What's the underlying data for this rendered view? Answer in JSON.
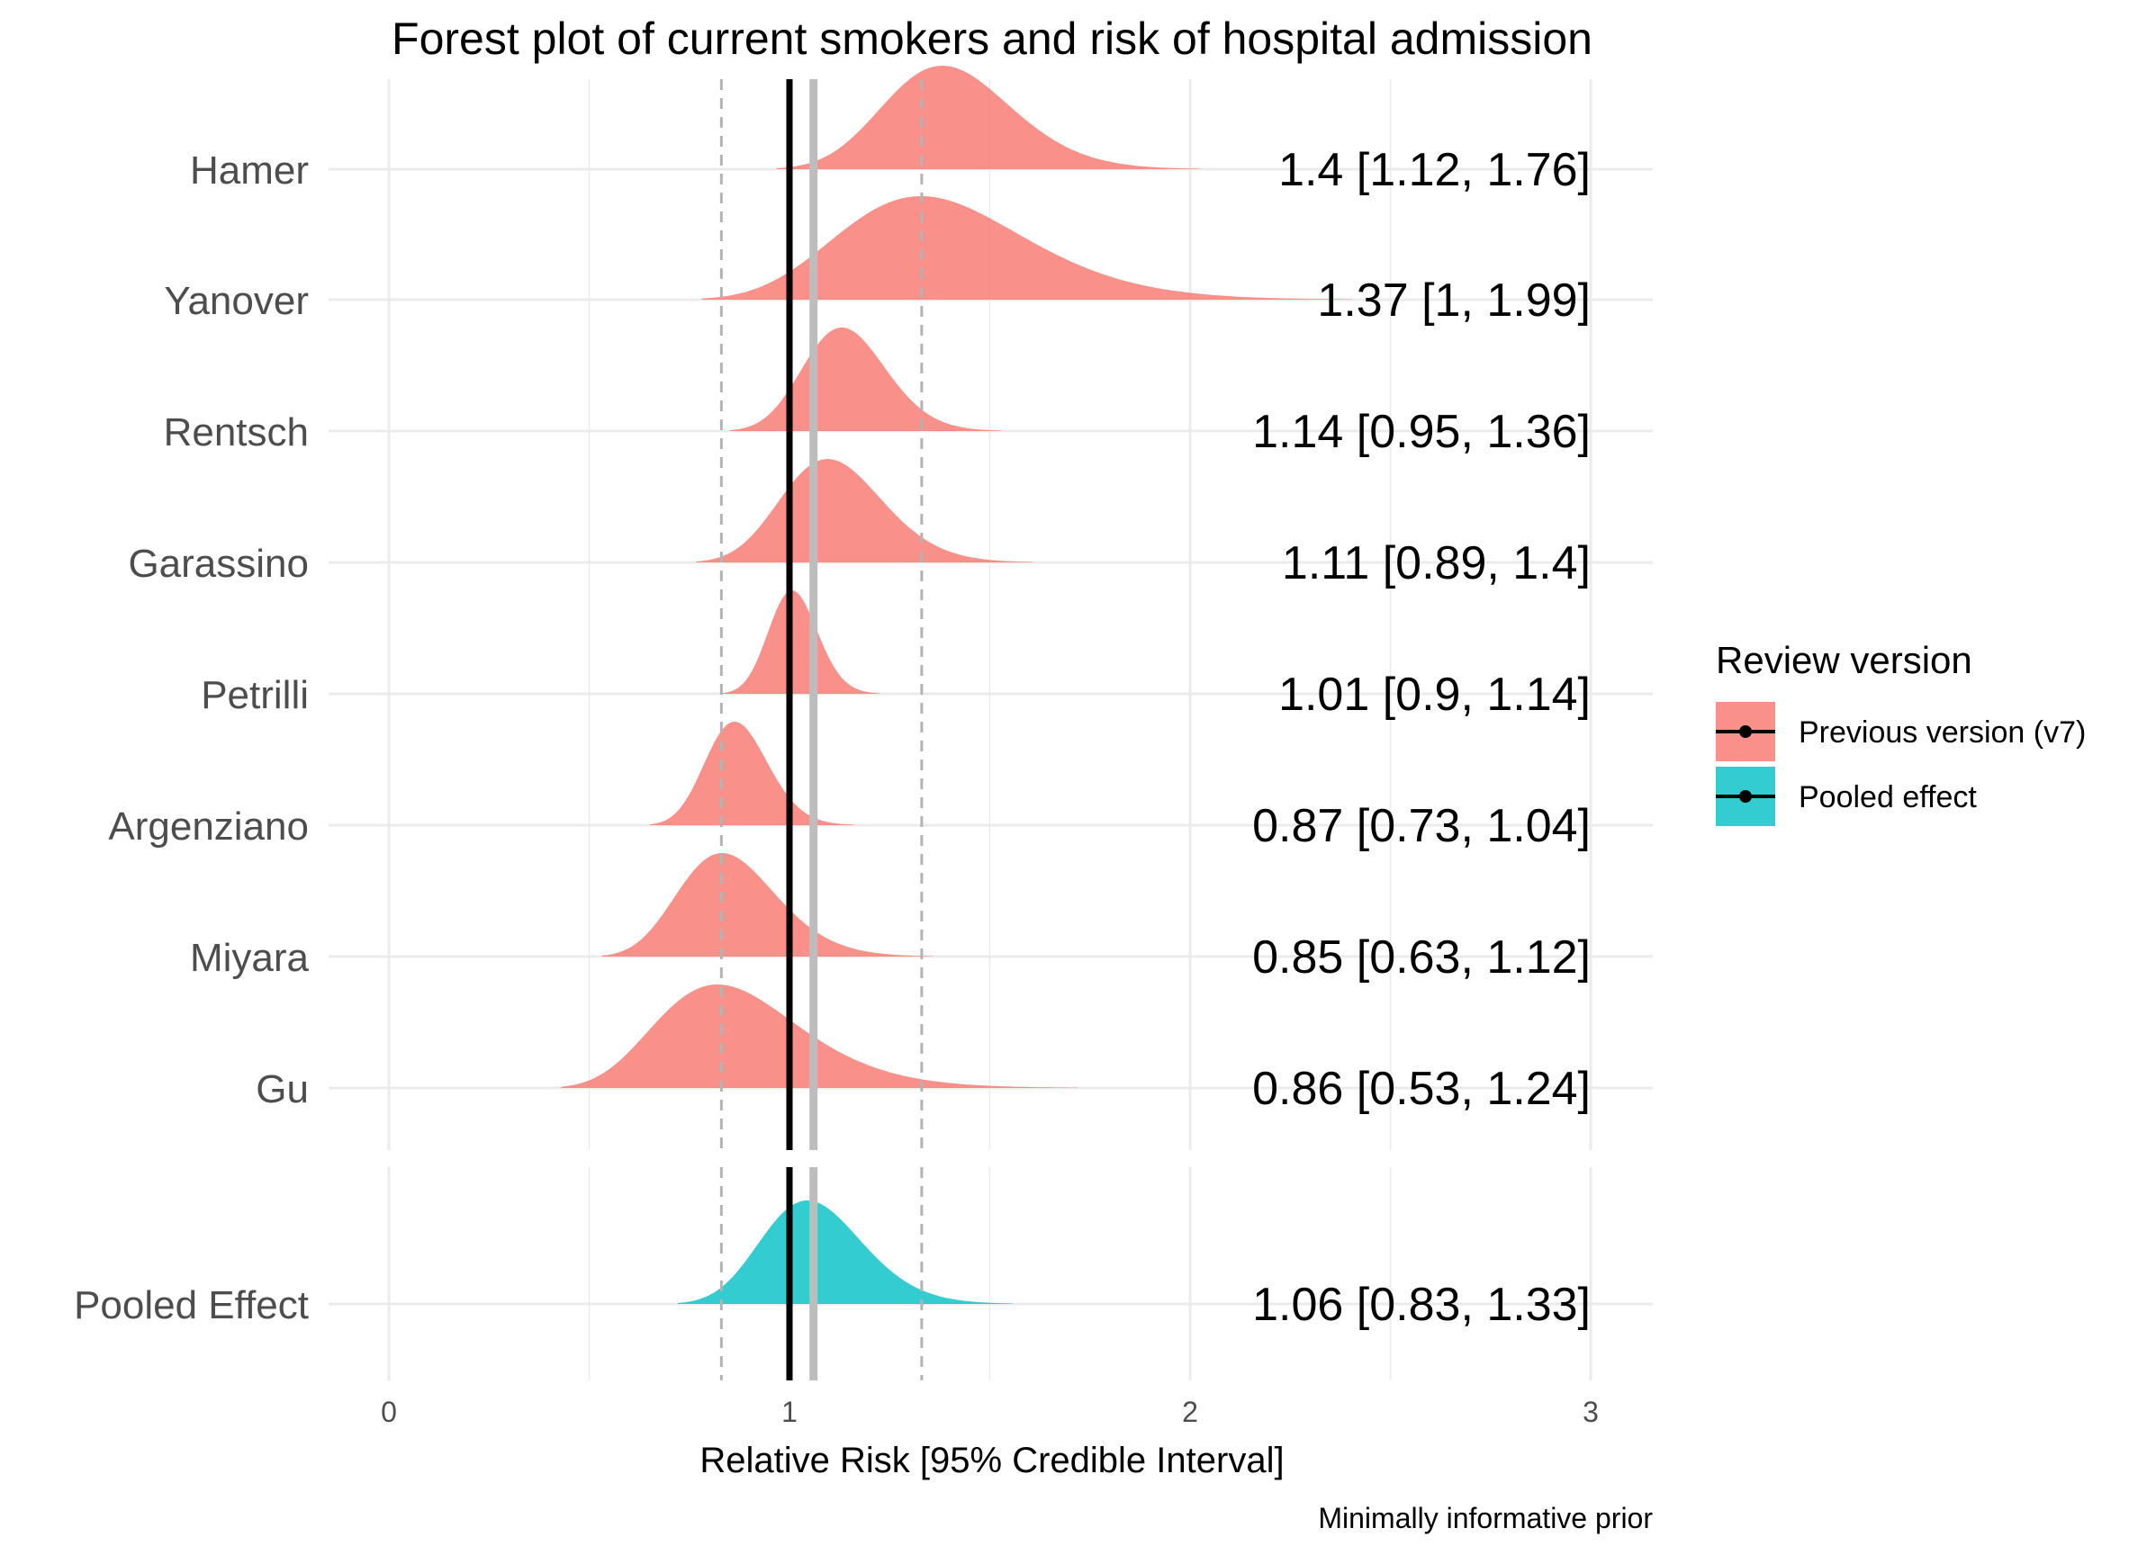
{
  "chart_data": {
    "type": "forest-density",
    "title": "Forest plot of current smokers and risk of hospital admission",
    "xlabel": "Relative Risk [95% Credible Interval]",
    "caption": "Minimally informative prior",
    "xlim": [
      0,
      3
    ],
    "x_ticks": [
      0,
      1,
      2,
      3
    ],
    "grid": true,
    "legend": {
      "title": "Review version",
      "position": "right",
      "entries": [
        {
          "label": "Previous version (v7)",
          "color": "#F8766D"
        },
        {
          "label": "Pooled effect",
          "color": "#00BFC4"
        }
      ]
    },
    "reference_lines": {
      "null_effect": 1,
      "pooled_mean": 1.06,
      "pooled_ci": [
        0.83,
        1.33
      ]
    },
    "studies": [
      {
        "name": "Hamer",
        "estimate": 1.4,
        "lower": 1.12,
        "upper": 1.76,
        "label": "1.4 [1.12, 1.76]",
        "group": "Previous version (v7)"
      },
      {
        "name": "Yanover",
        "estimate": 1.37,
        "lower": 1,
        "upper": 1.99,
        "label": "1.37 [1, 1.99]",
        "group": "Previous version (v7)"
      },
      {
        "name": "Rentsch",
        "estimate": 1.14,
        "lower": 0.95,
        "upper": 1.36,
        "label": "1.14 [0.95, 1.36]",
        "group": "Previous version (v7)"
      },
      {
        "name": "Garassino",
        "estimate": 1.11,
        "lower": 0.89,
        "upper": 1.4,
        "label": "1.11 [0.89, 1.4]",
        "group": "Previous version (v7)"
      },
      {
        "name": "Petrilli",
        "estimate": 1.01,
        "lower": 0.9,
        "upper": 1.14,
        "label": "1.01 [0.9, 1.14]",
        "group": "Previous version (v7)"
      },
      {
        "name": "Argenziano",
        "estimate": 0.87,
        "lower": 0.73,
        "upper": 1.04,
        "label": "0.87 [0.73, 1.04]",
        "group": "Previous version (v7)"
      },
      {
        "name": "Miyara",
        "estimate": 0.85,
        "lower": 0.63,
        "upper": 1.12,
        "label": "0.85 [0.63, 1.12]",
        "group": "Previous version (v7)"
      },
      {
        "name": "Gu",
        "estimate": 0.86,
        "lower": 0.53,
        "upper": 1.24,
        "label": "0.86 [0.53, 1.24]",
        "group": "Previous version (v7)"
      },
      {
        "name": "Pooled Effect",
        "estimate": 1.06,
        "lower": 0.83,
        "upper": 1.33,
        "label": "1.06 [0.83, 1.33]",
        "group": "Pooled effect"
      }
    ]
  }
}
